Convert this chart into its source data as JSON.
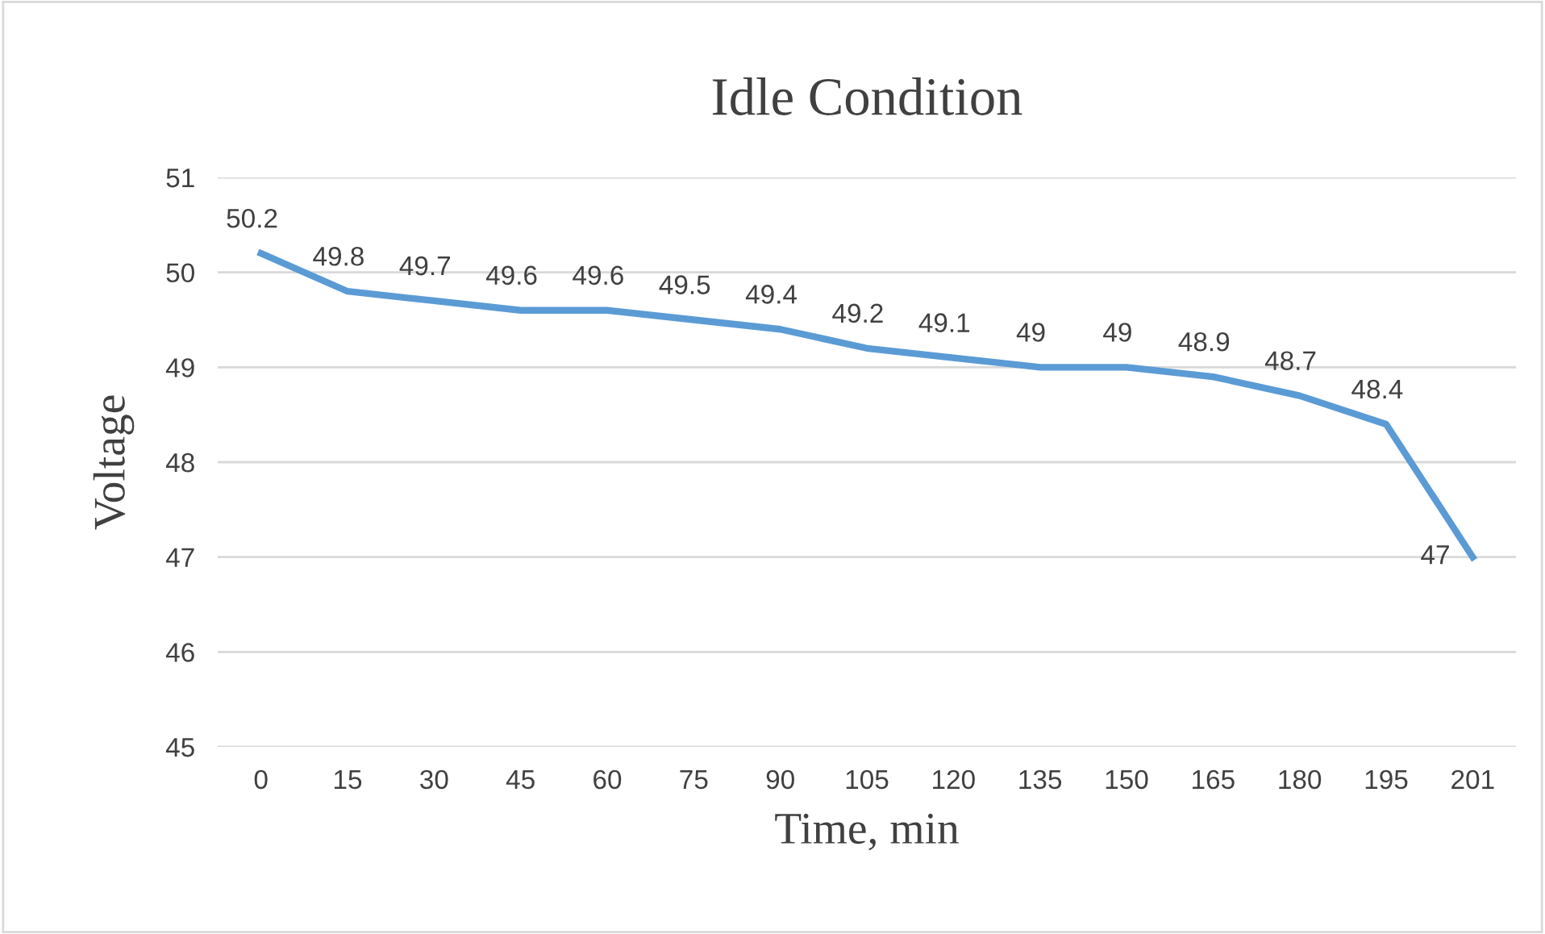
{
  "chart_data": {
    "type": "line",
    "title": "Idle Condition",
    "xlabel": "Time, min",
    "ylabel": "Voltage",
    "categories": [
      "0",
      "15",
      "30",
      "45",
      "60",
      "75",
      "90",
      "105",
      "120",
      "135",
      "150",
      "165",
      "180",
      "195",
      "201"
    ],
    "series": [
      {
        "color": "#5b9bd5",
        "values": [
          50.2,
          49.8,
          49.7,
          49.6,
          49.6,
          49.5,
          49.4,
          49.2,
          49.1,
          49,
          49,
          48.9,
          48.7,
          48.4,
          47
        ]
      }
    ],
    "ylim": [
      45,
      51
    ],
    "yticks": [
      45,
      46,
      47,
      48,
      49,
      50,
      51
    ],
    "grid": "y",
    "data_labels": true,
    "legend": false,
    "marker": "none",
    "line_style": "solid"
  }
}
